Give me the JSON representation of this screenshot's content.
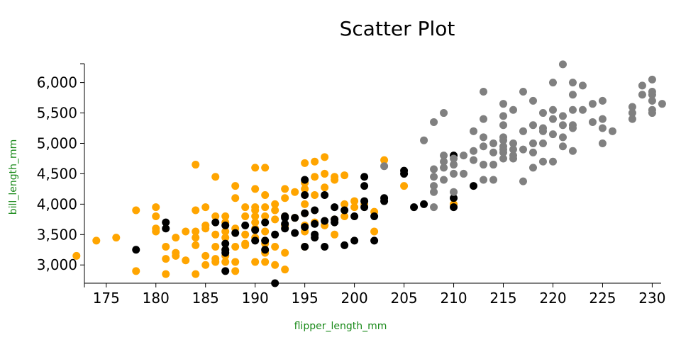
{
  "chart_data": {
    "type": "scatter",
    "title": "Scatter Plot",
    "xlabel": "flipper_length_mm",
    "ylabel": "bill_length_mm",
    "xlim": [
      172.8,
      230.9
    ],
    "ylim": [
      2700,
      6310
    ],
    "xticks": [
      175,
      180,
      185,
      190,
      195,
      200,
      205,
      210,
      215,
      220,
      225,
      230
    ],
    "xtick_labels": [
      "175",
      "180",
      "185",
      "190",
      "195",
      "200",
      "205",
      "210",
      "215",
      "220",
      "225",
      "230"
    ],
    "yticks": [
      3000,
      3500,
      4000,
      4500,
      5000,
      5500,
      6000
    ],
    "ytick_labels": [
      "3,000",
      "3,500",
      "4,000",
      "4,500",
      "5,000",
      "5,500",
      "6,000"
    ],
    "grid": false,
    "legend": "none",
    "series": [
      {
        "color": "#FFA500",
        "points": [
          [
            172,
            3150
          ],
          [
            174,
            3400
          ],
          [
            176,
            3450
          ],
          [
            178,
            3900
          ],
          [
            178,
            2900
          ],
          [
            180,
            3950
          ],
          [
            180,
            3800
          ],
          [
            180,
            3600
          ],
          [
            180,
            3550
          ],
          [
            181,
            3300
          ],
          [
            181,
            3100
          ],
          [
            181,
            2850
          ],
          [
            182,
            3200
          ],
          [
            182,
            3150
          ],
          [
            182,
            3450
          ],
          [
            183,
            3550
          ],
          [
            183,
            3075
          ],
          [
            184,
            4650
          ],
          [
            184,
            3900
          ],
          [
            184,
            3550
          ],
          [
            184,
            3450
          ],
          [
            184,
            3325
          ],
          [
            184,
            2850
          ],
          [
            185,
            3950
          ],
          [
            185,
            3650
          ],
          [
            185,
            3600
          ],
          [
            185,
            3150
          ],
          [
            185,
            3000
          ],
          [
            186,
            4450
          ],
          [
            186,
            3800
          ],
          [
            186,
            3500
          ],
          [
            186,
            3300
          ],
          [
            186,
            3100
          ],
          [
            186,
            3050
          ],
          [
            187,
            3800
          ],
          [
            187,
            3700
          ],
          [
            187,
            3550
          ],
          [
            187,
            3450
          ],
          [
            187,
            3250
          ],
          [
            187,
            3050
          ],
          [
            187,
            3150
          ],
          [
            188,
            4300
          ],
          [
            188,
            4100
          ],
          [
            188,
            3600
          ],
          [
            188,
            3300
          ],
          [
            188,
            3050
          ],
          [
            188,
            2900
          ],
          [
            189,
            3950
          ],
          [
            189,
            3800
          ],
          [
            189,
            3500
          ],
          [
            189,
            3350
          ],
          [
            189,
            3325
          ],
          [
            190,
            4600
          ],
          [
            190,
            4250
          ],
          [
            190,
            3950
          ],
          [
            190,
            3900
          ],
          [
            190,
            3800
          ],
          [
            190,
            3700
          ],
          [
            190,
            3600
          ],
          [
            190,
            3450
          ],
          [
            190,
            3050
          ],
          [
            191,
            4600
          ],
          [
            191,
            4150
          ],
          [
            191,
            3950
          ],
          [
            191,
            3800
          ],
          [
            191,
            3550
          ],
          [
            191,
            3350
          ],
          [
            191,
            3200
          ],
          [
            191,
            3050
          ],
          [
            192,
            4000
          ],
          [
            192,
            3900
          ],
          [
            192,
            3750
          ],
          [
            192,
            3300
          ],
          [
            192,
            3000
          ],
          [
            193,
            4250
          ],
          [
            193,
            4100
          ],
          [
            193,
            3800
          ],
          [
            193,
            3650
          ],
          [
            193,
            3200
          ],
          [
            193,
            2925
          ],
          [
            194,
            4200
          ],
          [
            194,
            3775
          ],
          [
            195,
            4675
          ],
          [
            195,
            4350
          ],
          [
            195,
            4250
          ],
          [
            195,
            4000
          ],
          [
            195,
            3850
          ],
          [
            195,
            3650
          ],
          [
            195,
            3550
          ],
          [
            195,
            3300
          ],
          [
            196,
            4700
          ],
          [
            196,
            4450
          ],
          [
            196,
            4150
          ],
          [
            196,
            3700
          ],
          [
            197,
            4775
          ],
          [
            197,
            4500
          ],
          [
            197,
            4275
          ],
          [
            197,
            3650
          ],
          [
            198,
            4450
          ],
          [
            198,
            4400
          ],
          [
            198,
            3750
          ],
          [
            198,
            3500
          ],
          [
            199,
            4475
          ],
          [
            199,
            4000
          ],
          [
            199,
            3800
          ],
          [
            200,
            4050
          ],
          [
            200,
            3950
          ],
          [
            201,
            4000
          ],
          [
            202,
            3875
          ],
          [
            202,
            3550
          ],
          [
            203,
            4725
          ],
          [
            205,
            4300
          ],
          [
            210,
            4000
          ]
        ]
      },
      {
        "color": "#000000",
        "points": [
          [
            178,
            3250
          ],
          [
            181,
            3700
          ],
          [
            181,
            3600
          ],
          [
            186,
            3700
          ],
          [
            187,
            3650
          ],
          [
            187,
            3350
          ],
          [
            187,
            3250
          ],
          [
            187,
            3200
          ],
          [
            187,
            2900
          ],
          [
            188,
            3525
          ],
          [
            189,
            3650
          ],
          [
            190,
            3575
          ],
          [
            190,
            3400
          ],
          [
            191,
            3700
          ],
          [
            191,
            3400
          ],
          [
            191,
            3250
          ],
          [
            192,
            2700
          ],
          [
            192,
            3500
          ],
          [
            193,
            3800
          ],
          [
            193,
            3775
          ],
          [
            193,
            3675
          ],
          [
            193,
            3600
          ],
          [
            194,
            3775
          ],
          [
            194,
            3525
          ],
          [
            195,
            4400
          ],
          [
            195,
            4150
          ],
          [
            195,
            3850
          ],
          [
            195,
            3625
          ],
          [
            195,
            3300
          ],
          [
            196,
            3900
          ],
          [
            196,
            3675
          ],
          [
            196,
            3500
          ],
          [
            196,
            3450
          ],
          [
            197,
            4150
          ],
          [
            197,
            3725
          ],
          [
            197,
            3300
          ],
          [
            198,
            3950
          ],
          [
            198,
            3700
          ],
          [
            198,
            3750
          ],
          [
            199,
            3900
          ],
          [
            199,
            3325
          ],
          [
            200,
            3800
          ],
          [
            200,
            3400
          ],
          [
            201,
            4450
          ],
          [
            201,
            4300
          ],
          [
            201,
            4050
          ],
          [
            201,
            3950
          ],
          [
            202,
            3800
          ],
          [
            202,
            3400
          ],
          [
            203,
            4100
          ],
          [
            203,
            4050
          ],
          [
            205,
            4550
          ],
          [
            205,
            4500
          ],
          [
            206,
            3950
          ],
          [
            207,
            4000
          ],
          [
            210,
            4800
          ],
          [
            210,
            4100
          ],
          [
            210,
            3950
          ],
          [
            212,
            4300
          ]
        ]
      },
      {
        "color": "#808080",
        "points": [
          [
            203,
            4625
          ],
          [
            207,
            5050
          ],
          [
            208,
            5350
          ],
          [
            208,
            4575
          ],
          [
            208,
            4450
          ],
          [
            208,
            4300
          ],
          [
            208,
            4200
          ],
          [
            208,
            3950
          ],
          [
            209,
            5500
          ],
          [
            209,
            4800
          ],
          [
            209,
            4700
          ],
          [
            209,
            4600
          ],
          [
            209,
            4400
          ],
          [
            210,
            4750
          ],
          [
            210,
            4650
          ],
          [
            210,
            4500
          ],
          [
            210,
            4200
          ],
          [
            211,
            4800
          ],
          [
            211,
            4500
          ],
          [
            212,
            5200
          ],
          [
            212,
            4875
          ],
          [
            212,
            4725
          ],
          [
            213,
            5850
          ],
          [
            213,
            5400
          ],
          [
            213,
            5100
          ],
          [
            213,
            4950
          ],
          [
            213,
            4650
          ],
          [
            213,
            4400
          ],
          [
            214,
            5000
          ],
          [
            214,
            4850
          ],
          [
            214,
            4650
          ],
          [
            214,
            4400
          ],
          [
            215,
            5650
          ],
          [
            215,
            5450
          ],
          [
            215,
            5300
          ],
          [
            215,
            5100
          ],
          [
            215,
            5050
          ],
          [
            215,
            4950
          ],
          [
            215,
            4900
          ],
          [
            215,
            4850
          ],
          [
            215,
            4750
          ],
          [
            216,
            5550
          ],
          [
            216,
            5000
          ],
          [
            216,
            4900
          ],
          [
            216,
            4800
          ],
          [
            216,
            4750
          ],
          [
            217,
            5850
          ],
          [
            217,
            5200
          ],
          [
            217,
            4900
          ],
          [
            217,
            4375
          ],
          [
            218,
            5700
          ],
          [
            218,
            5300
          ],
          [
            218,
            5000
          ],
          [
            218,
            4600
          ],
          [
            218,
            4850
          ],
          [
            219,
            5500
          ],
          [
            219,
            5250
          ],
          [
            219,
            5200
          ],
          [
            219,
            4700
          ],
          [
            219,
            5000
          ],
          [
            220,
            6000
          ],
          [
            220,
            5550
          ],
          [
            220,
            5400
          ],
          [
            220,
            5150
          ],
          [
            220,
            4700
          ],
          [
            221,
            6300
          ],
          [
            221,
            5450
          ],
          [
            221,
            5300
          ],
          [
            221,
            5100
          ],
          [
            221,
            4950
          ],
          [
            222,
            6000
          ],
          [
            222,
            5800
          ],
          [
            222,
            5550
          ],
          [
            222,
            5300
          ],
          [
            222,
            5250
          ],
          [
            222,
            4875
          ],
          [
            223,
            5950
          ],
          [
            223,
            5550
          ],
          [
            224,
            5650
          ],
          [
            224,
            5350
          ],
          [
            225,
            5700
          ],
          [
            225,
            5400
          ],
          [
            225,
            5250
          ],
          [
            225,
            5000
          ],
          [
            226,
            5200
          ],
          [
            228,
            5600
          ],
          [
            228,
            5500
          ],
          [
            228,
            5400
          ],
          [
            229,
            5950
          ],
          [
            229,
            5800
          ],
          [
            230,
            6050
          ],
          [
            230,
            5850
          ],
          [
            230,
            5800
          ],
          [
            230,
            5700
          ],
          [
            230,
            5550
          ],
          [
            230,
            5500
          ],
          [
            231,
            5650
          ]
        ]
      }
    ]
  }
}
